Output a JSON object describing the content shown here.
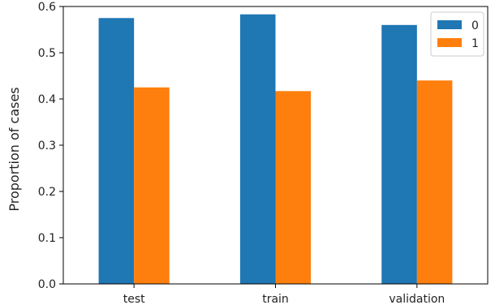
{
  "chart_data": {
    "type": "bar",
    "title": "",
    "xlabel": "",
    "ylabel": "Proportion of cases",
    "categories": [
      "test",
      "train",
      "validation"
    ],
    "series": [
      {
        "name": "0",
        "values": [
          0.575,
          0.583,
          0.56
        ],
        "color": "#1f77b4"
      },
      {
        "name": "1",
        "values": [
          0.425,
          0.417,
          0.44
        ],
        "color": "#ff7f0e"
      }
    ],
    "ylim": [
      0,
      0.6
    ],
    "yticks": [
      "0.0",
      "0.1",
      "0.2",
      "0.3",
      "0.4",
      "0.5",
      "0.6"
    ],
    "grid": false,
    "legend_position": "top-right"
  }
}
